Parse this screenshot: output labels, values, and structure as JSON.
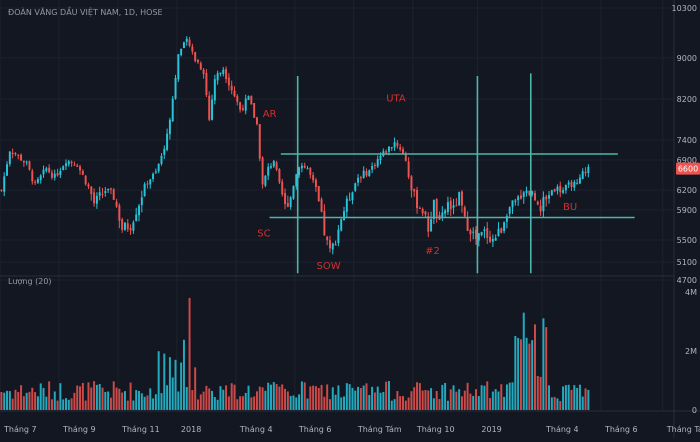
{
  "chart_data": [
    {
      "type": "candlestick",
      "title": "ĐOÀN VĂNG DẦU VIỆT NAM, 1D, HOSE",
      "last_price_label": "6600",
      "ylim": [
        4700,
        10300
      ],
      "yticks": [
        {
          "value": 10300,
          "label": "10300"
        },
        {
          "value": 9000,
          "label": "9000"
        },
        {
          "value": 8200,
          "label": "8200"
        },
        {
          "value": 7400,
          "label": "7400"
        },
        {
          "value": 6900,
          "label": "6900"
        },
        {
          "value": 6200,
          "label": "6200"
        },
        {
          "value": 5900,
          "label": "5900"
        },
        {
          "value": 5500,
          "label": "5500"
        },
        {
          "value": 5100,
          "label": "5100"
        },
        {
          "value": 4700,
          "label": "4700"
        }
      ],
      "x_range": [
        0,
        240
      ],
      "xticks": [
        {
          "pos": 0,
          "label": "Tháng 7"
        },
        {
          "pos": 21,
          "label": "Tháng 9"
        },
        {
          "pos": 42,
          "label": "Tháng 11"
        },
        {
          "pos": 63,
          "label": "2018"
        },
        {
          "pos": 84,
          "label": "Tháng 4"
        },
        {
          "pos": 105,
          "label": "Tháng 6"
        },
        {
          "pos": 126,
          "label": "Tháng Tám"
        },
        {
          "pos": 147,
          "label": "Tháng 10"
        },
        {
          "pos": 170,
          "label": "2019"
        },
        {
          "pos": 193,
          "label": "Tháng 4"
        },
        {
          "pos": 214,
          "label": "Tháng 6"
        },
        {
          "pos": 236,
          "label": "Tháng Tám"
        }
      ],
      "price_path": [
        [
          0,
          6200
        ],
        [
          3,
          7150
        ],
        [
          6,
          7000
        ],
        [
          9,
          6800
        ],
        [
          12,
          6300
        ],
        [
          16,
          6700
        ],
        [
          19,
          6500
        ],
        [
          23,
          6900
        ],
        [
          27,
          6800
        ],
        [
          30,
          6400
        ],
        [
          33,
          6000
        ],
        [
          37,
          6200
        ],
        [
          40,
          6100
        ],
        [
          43,
          5650
        ],
        [
          46,
          5700
        ],
        [
          49,
          6000
        ],
        [
          52,
          6400
        ],
        [
          55,
          6600
        ],
        [
          58,
          7200
        ],
        [
          61,
          8200
        ],
        [
          63,
          9100
        ],
        [
          66,
          9450
        ],
        [
          69,
          9000
        ],
        [
          72,
          8750
        ],
        [
          74,
          7800
        ],
        [
          76,
          8600
        ],
        [
          79,
          8800
        ],
        [
          82,
          8400
        ],
        [
          85,
          8000
        ],
        [
          88,
          8200
        ],
        [
          91,
          7700
        ],
        [
          93,
          6300
        ],
        [
          95,
          6700
        ],
        [
          97,
          6900
        ],
        [
          99,
          6300
        ],
        [
          101,
          5950
        ],
        [
          103,
          6100
        ],
        [
          106,
          6800
        ],
        [
          109,
          6700
        ],
        [
          112,
          6200
        ],
        [
          115,
          5600
        ],
        [
          117,
          5300
        ],
        [
          119,
          5500
        ],
        [
          121,
          5800
        ],
        [
          124,
          6100
        ],
        [
          127,
          6500
        ],
        [
          131,
          6650
        ],
        [
          135,
          7000
        ],
        [
          138,
          7200
        ],
        [
          140,
          7350
        ],
        [
          142,
          7200
        ],
        [
          144,
          6900
        ],
        [
          146,
          6200
        ],
        [
          148,
          6000
        ],
        [
          150,
          5900
        ],
        [
          152,
          5650
        ],
        [
          154,
          6000
        ],
        [
          156,
          5700
        ],
        [
          159,
          6000
        ],
        [
          161,
          5900
        ],
        [
          163,
          6100
        ],
        [
          165,
          5750
        ],
        [
          167,
          5650
        ],
        [
          169,
          5500
        ],
        [
          172,
          5600
        ],
        [
          175,
          5500
        ],
        [
          178,
          5650
        ],
        [
          180,
          5900
        ],
        [
          183,
          6000
        ],
        [
          186,
          6200
        ],
        [
          189,
          6150
        ],
        [
          192,
          5950
        ],
        [
          194,
          6100
        ],
        [
          197,
          6250
        ],
        [
          200,
          6200
        ],
        [
          203,
          6350
        ],
        [
          205,
          6300
        ],
        [
          207,
          6600
        ],
        [
          209,
          6700
        ]
      ],
      "volume_panel": {
        "label": "Lượng (20)",
        "ylim": [
          0,
          4000000
        ],
        "yticks": [
          {
            "value": 4000000,
            "label": "4M"
          },
          {
            "value": 2000000,
            "label": "2M"
          },
          {
            "value": 0,
            "label": "0"
          }
        ]
      },
      "annotations": [
        {
          "text": "AR",
          "x": 96,
          "y": 7850
        },
        {
          "text": "SC",
          "x": 94,
          "y": 5550
        },
        {
          "text": "SOW",
          "x": 117,
          "y": 4950
        },
        {
          "text": "UTA",
          "x": 141,
          "y": 8150
        },
        {
          "text": "#2",
          "x": 154,
          "y": 5250
        },
        {
          "text": "BU",
          "x": 203,
          "y": 5900
        }
      ],
      "horizontal_lines": [
        {
          "y": 7050,
          "x_start": 100,
          "x_end": 220
        },
        {
          "y": 5800,
          "x_start": 96,
          "x_end": 226
        }
      ],
      "vertical_lines": [
        {
          "x": 106,
          "y_start": 4850,
          "y_end": 8650
        },
        {
          "x": 170,
          "y_start": 4850,
          "y_end": 8650
        },
        {
          "x": 189,
          "y_start": 4850,
          "y_end": 8700
        }
      ],
      "colors": {
        "up": "#26c6da",
        "down": "#ef5350",
        "level_line": "#4db6ac",
        "annotation": "#d32f2f",
        "last_price_badge": "#ef5350"
      }
    }
  ]
}
